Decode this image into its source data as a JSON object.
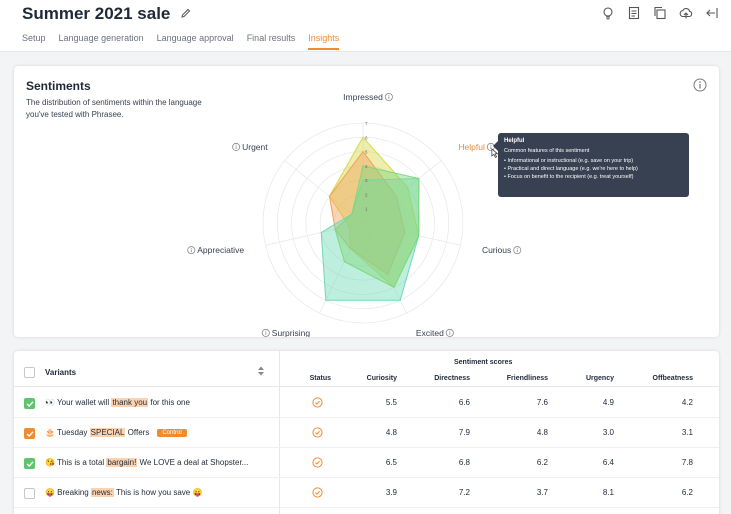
{
  "header": {
    "title": "Summer 2021 sale",
    "tabs": [
      "Setup",
      "Language generation",
      "Language approval",
      "Final results",
      "Insights"
    ],
    "active_tab": "Insights"
  },
  "sentiments": {
    "title": "Sentiments",
    "description": "The distribution of sentiments within the language you've tested with Phrasee.",
    "axes": [
      "Impressed",
      "Helpful",
      "Curious",
      "Excited",
      "Surprising",
      "Appreciative",
      "Urgent"
    ],
    "scale_ticks": [
      "7",
      "6",
      "5",
      "4",
      "3",
      "2",
      "1"
    ],
    "highlighted_axis": "Helpful",
    "series": [
      {
        "color": "#d8d84a",
        "values": [
          6,
          4,
          4,
          5,
          2,
          1,
          3
        ]
      },
      {
        "color": "#f2a25a",
        "values": [
          5,
          3,
          3,
          4,
          2,
          2,
          3
        ]
      },
      {
        "color": "#6fd9b4",
        "values": [
          3,
          5,
          4,
          6,
          6,
          3,
          1
        ]
      },
      {
        "color": "#7ed87e",
        "values": [
          4,
          5,
          4,
          5,
          3,
          2,
          1
        ]
      }
    ]
  },
  "tooltip": {
    "title": "Helpful",
    "subtitle": "Common features of this sentiment",
    "items": [
      "Informational or instructional (e.g. save on your trip)",
      "Practical and direct language (e.g. we're here to help)",
      "Focus on benefit to the recipient (e.g. treat yourself)"
    ]
  },
  "table": {
    "variants_label": "Variants",
    "scores_label": "Sentiment scores",
    "columns": [
      "Status",
      "Curiosity",
      "Directness",
      "Friendliness",
      "Urgency",
      "Offbeatness"
    ],
    "control_badge": "Control",
    "rows": [
      {
        "checkbox": "green",
        "parts": [
          "👀 Your wallet will ",
          "thank you",
          " for this one"
        ],
        "control": false,
        "scores": [
          "5.5",
          "6.6",
          "7.6",
          "4.9",
          "4.2"
        ]
      },
      {
        "checkbox": "orange",
        "parts": [
          "🎂 Tuesday ",
          "SPECIAL",
          " Offers"
        ],
        "control": true,
        "scores": [
          "4.8",
          "7.9",
          "4.8",
          "3.0",
          "3.1"
        ]
      },
      {
        "checkbox": "green",
        "parts": [
          "😘 This is a total ",
          "bargain!",
          " We LOVE a deal at Shopster..."
        ],
        "control": false,
        "scores": [
          "6.5",
          "6.8",
          "6.2",
          "6.4",
          "7.8"
        ]
      },
      {
        "checkbox": "empty",
        "parts": [
          "😛 Breaking ",
          "news:",
          " This is how you save 😛"
        ],
        "control": false,
        "scores": [
          "3.9",
          "7.2",
          "3.7",
          "8.1",
          "6.2"
        ]
      }
    ]
  },
  "colors": {
    "accent": "#f08c2e",
    "success": "#5fc46e"
  },
  "icons": [
    "edit-icon",
    "idea-icon",
    "document-icon",
    "copy-icon",
    "cloud-upload-icon",
    "collapse-icon",
    "info-icon",
    "sort-icon",
    "status-check-icon",
    "cursor-icon"
  ]
}
